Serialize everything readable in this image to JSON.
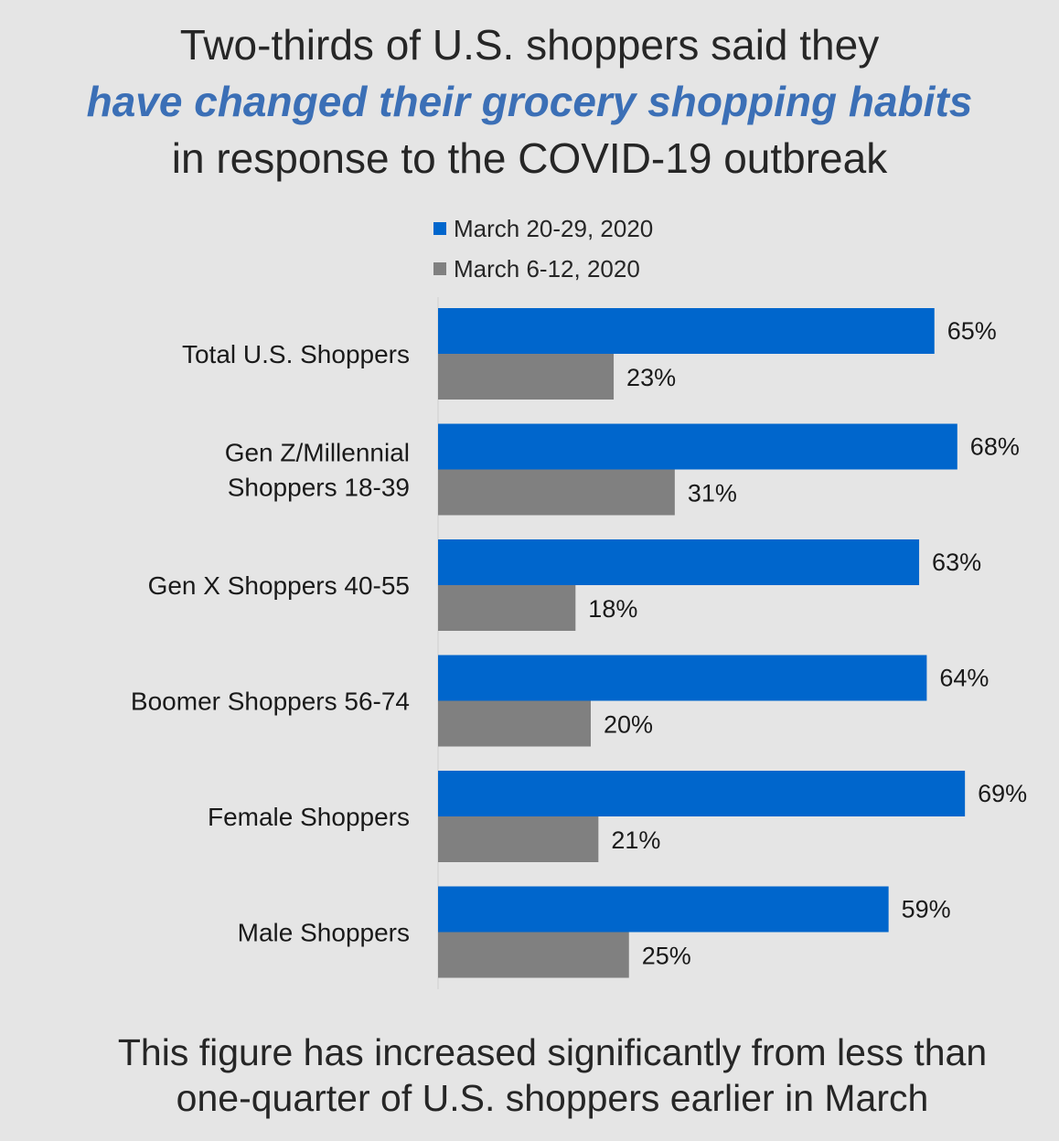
{
  "title": {
    "line1": "Two-thirds of U.S. shoppers said they",
    "line2": "have changed their grocery shopping habits",
    "line3": "in response to the COVID-19 outbreak"
  },
  "legend": {
    "series1": "March 20-29, 2020",
    "series2": "March 6-12, 2020"
  },
  "footer": {
    "line1": "This figure has increased significantly from less than",
    "line2": "one-quarter of U.S. shoppers earlier in March"
  },
  "colors": {
    "series1": "#0066cc",
    "series2": "#808080",
    "title_highlight": "#3b6fb6"
  },
  "chart_data": {
    "type": "bar",
    "orientation": "horizontal",
    "categories": [
      [
        "Total U.S. Shoppers"
      ],
      [
        "Gen Z/Millennial",
        "Shoppers 18-39"
      ],
      [
        "Gen X Shoppers 40-55"
      ],
      [
        "Boomer Shoppers 56-74"
      ],
      [
        "Female Shoppers"
      ],
      [
        "Male Shoppers"
      ]
    ],
    "series": [
      {
        "name": "March 20-29, 2020",
        "values": [
          65,
          68,
          63,
          64,
          69,
          59
        ],
        "labels": [
          "65%",
          "68%",
          "63%",
          "64%",
          "69%",
          "59%"
        ]
      },
      {
        "name": "March 6-12, 2020",
        "values": [
          23,
          31,
          18,
          20,
          21,
          25
        ],
        "labels": [
          "23%",
          "31%",
          "18%",
          "20%",
          "21%",
          "25%"
        ]
      }
    ],
    "xlim": [
      0,
      100
    ],
    "grid": false,
    "legend_position": "top"
  }
}
